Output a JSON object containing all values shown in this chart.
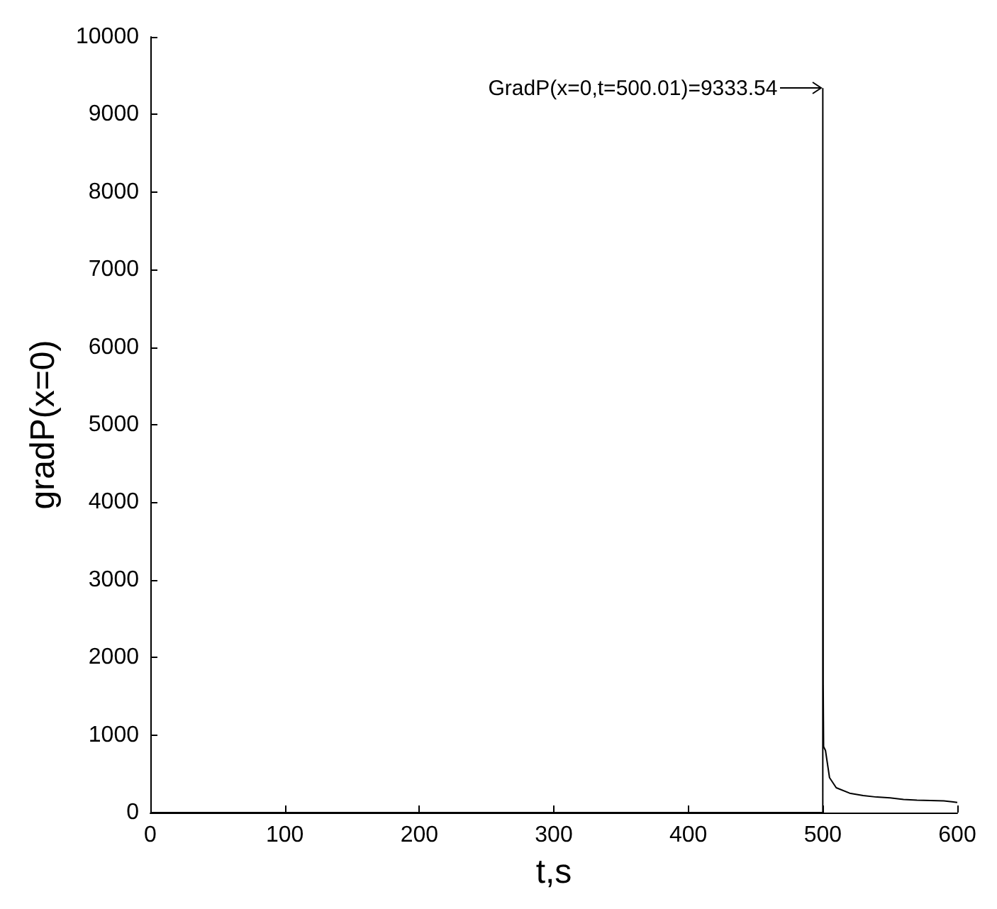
{
  "chart_data": {
    "type": "line",
    "xlabel": "t,s",
    "ylabel": "gradP(x=0)",
    "x": [
      0,
      500,
      500.01,
      500.3,
      500.6,
      502,
      505,
      510,
      520,
      530,
      540,
      550,
      560,
      570,
      580,
      590,
      596,
      600
    ],
    "series": [
      {
        "color": "#000000",
        "values": [
          0,
          0,
          9333.54,
          1650,
          850,
          800,
          450,
          320,
          250,
          220,
          200,
          190,
          170,
          160,
          155,
          150,
          140,
          130
        ]
      }
    ],
    "xlim": [
      0,
      600
    ],
    "xticks": [
      0,
      100,
      200,
      300,
      400,
      500,
      600
    ],
    "ylim": [
      0,
      10000
    ],
    "yticks": [
      0,
      1000,
      2000,
      3000,
      4000,
      5000,
      6000,
      7000,
      8000,
      9000,
      10000
    ],
    "grid": false,
    "marker": "none",
    "line_style": "solid",
    "annotations": [
      {
        "text": "GradP(x=0,t=500.01)=9333.54",
        "x": 500.01,
        "y": 9333.54
      }
    ]
  }
}
